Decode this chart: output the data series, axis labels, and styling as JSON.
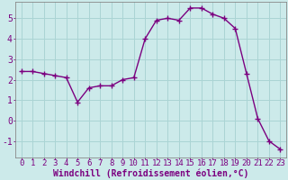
{
  "x": [
    0,
    1,
    2,
    3,
    4,
    5,
    6,
    7,
    8,
    9,
    10,
    11,
    12,
    13,
    14,
    15,
    16,
    17,
    18,
    19,
    20,
    21,
    22,
    23
  ],
  "y": [
    2.4,
    2.4,
    2.3,
    2.2,
    2.1,
    0.9,
    1.6,
    1.7,
    1.7,
    2.0,
    2.1,
    4.0,
    4.9,
    5.0,
    4.9,
    5.5,
    5.5,
    5.2,
    5.0,
    4.5,
    2.3,
    0.1,
    -1.0,
    -1.4
  ],
  "line_color": "#7b0080",
  "marker": "+",
  "marker_size": 4,
  "background_color": "#cceaea",
  "grid_color": "#aad4d4",
  "xlabel": "Windchill (Refroidissement éolien,°C)",
  "xlabel_fontsize": 7,
  "tick_fontsize": 6.5,
  "ylim": [
    -1.8,
    5.8
  ],
  "xlim": [
    -0.5,
    23.5
  ],
  "yticks": [
    -1,
    0,
    1,
    2,
    3,
    4,
    5
  ],
  "xticks": [
    0,
    1,
    2,
    3,
    4,
    5,
    6,
    7,
    8,
    9,
    10,
    11,
    12,
    13,
    14,
    15,
    16,
    17,
    18,
    19,
    20,
    21,
    22,
    23
  ]
}
